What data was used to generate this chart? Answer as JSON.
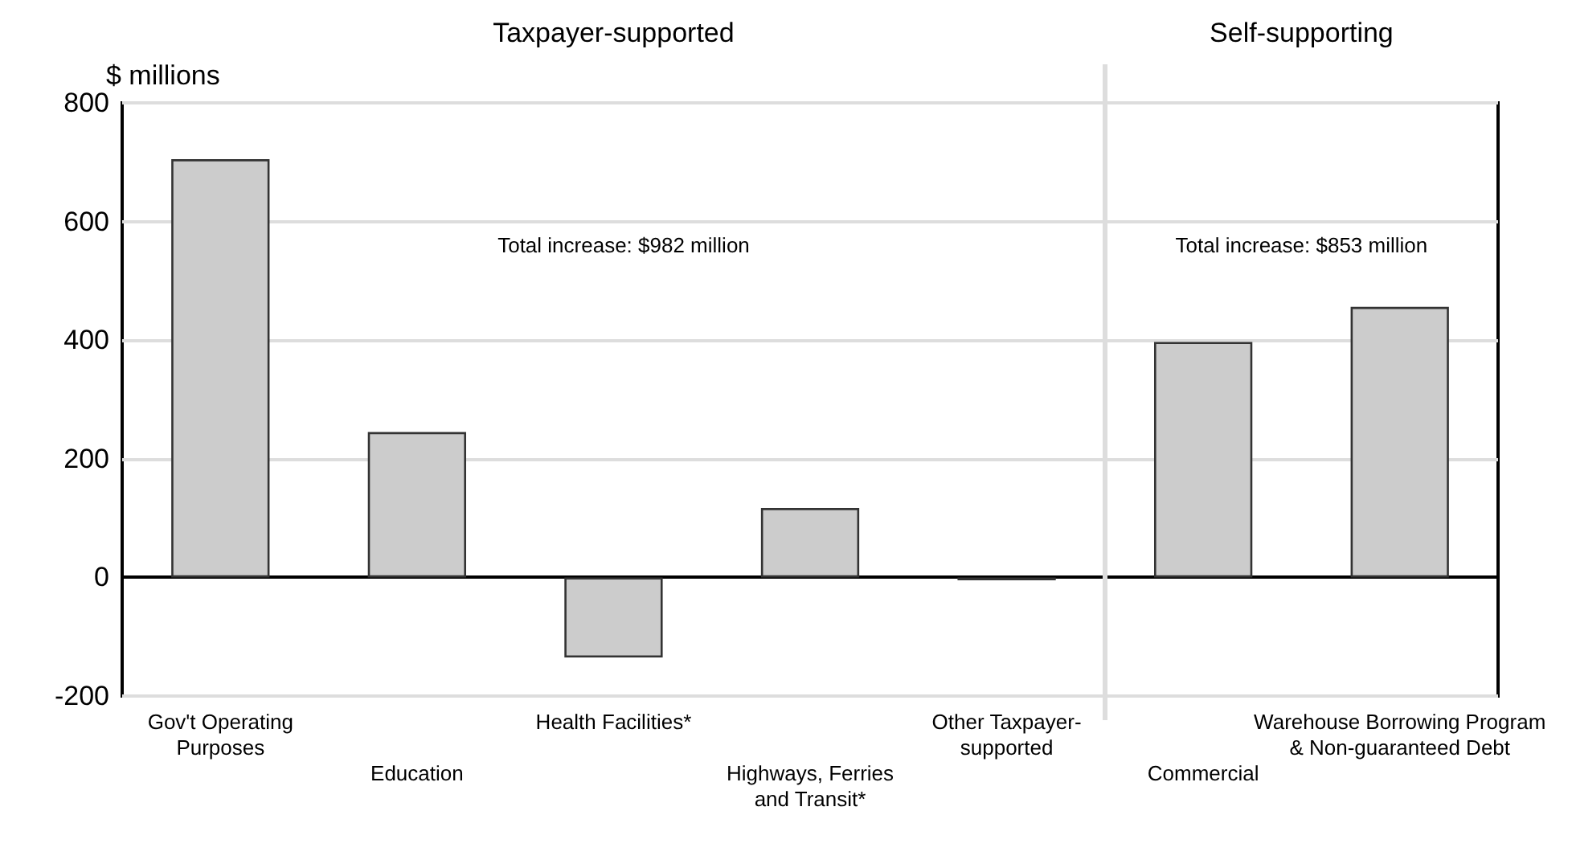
{
  "chart_data": {
    "type": "bar",
    "ylabel": "$ millions",
    "categories": [
      "Gov't Operating\nPurposes",
      "Education",
      "Health Facilities*",
      "Highways, Ferries\nand Transit*",
      "Other Taxpayer-\nsupported",
      "Commercial",
      "Warehouse Borrowing Program\n& Non-guaranteed Debt"
    ],
    "values": [
      705,
      245,
      -135,
      117,
      -5,
      397,
      456
    ],
    "color": "#cccccc",
    "ylim": [
      -200,
      800
    ],
    "yticks": [
      -200,
      0,
      200,
      400,
      600,
      800
    ],
    "grid": "y",
    "annotations": [
      "Taxpayer-supported",
      "Self-supporting",
      "Total increase: $982 million",
      "Total increase: $853 million"
    ]
  }
}
